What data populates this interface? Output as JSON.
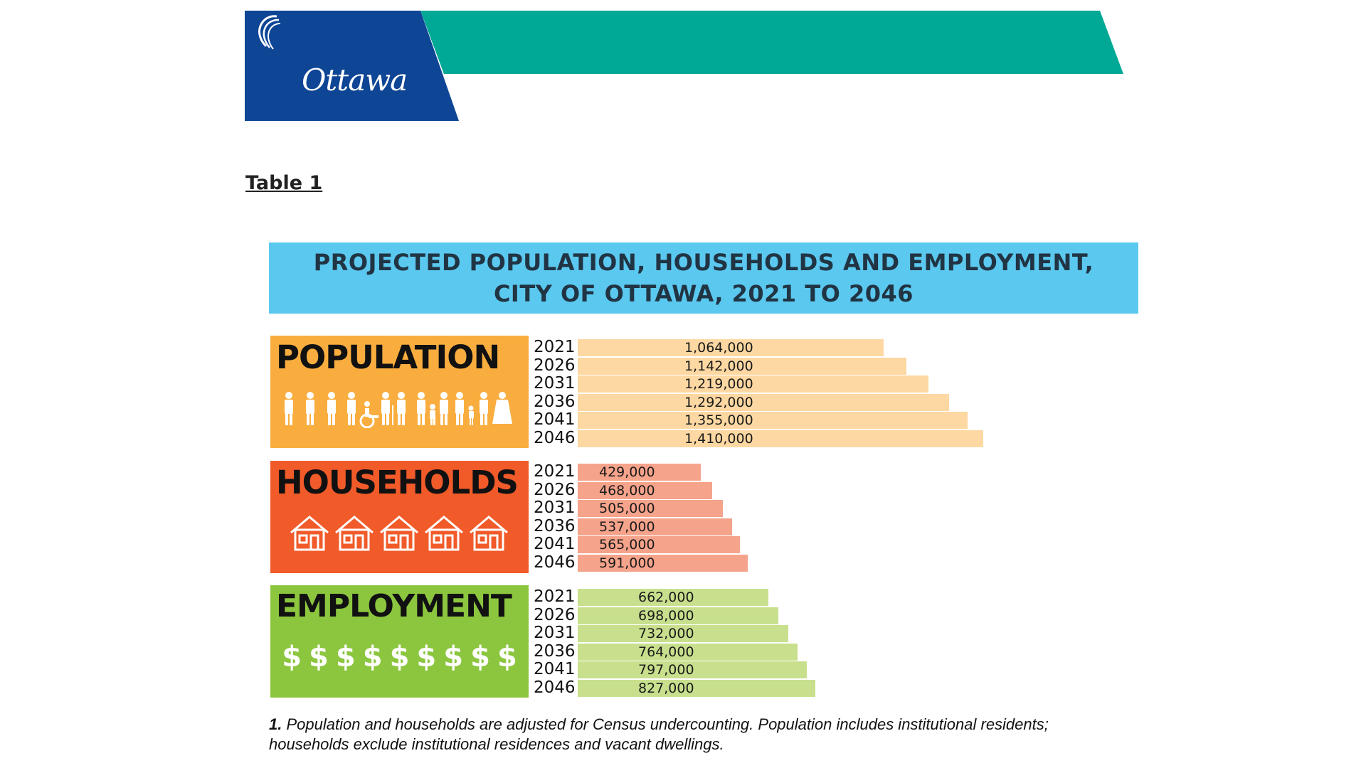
{
  "header": {
    "logo_text": "Ottawa",
    "colors": {
      "navy": "#0e4595",
      "teal": "#00a896"
    }
  },
  "table_label": "Table 1",
  "title": {
    "line1": "PROJECTED POPULATION, HOUSEHOLDS AND EMPLOYMENT,",
    "line2": "CITY OF OTTAWA, 2021 TO 2046"
  },
  "panels": {
    "population": {
      "title": "POPULATION",
      "color": "#f9ad3f",
      "bar_color": "#fdd8a2",
      "icon": "people-icon"
    },
    "households": {
      "title": "HOUSEHOLDS",
      "color": "#f15a29",
      "bar_color": "#f5a38b",
      "icon": "house-icon"
    },
    "employment": {
      "title": "EMPLOYMENT",
      "color": "#8cc63f",
      "bar_color": "#c8e08d",
      "icon": "dollar-icon",
      "dollar": "$"
    }
  },
  "chart_data": [
    {
      "type": "bar",
      "title": "POPULATION",
      "categories": [
        "2021",
        "2026",
        "2031",
        "2036",
        "2041",
        "2046"
      ],
      "values": [
        1064000,
        1142000,
        1219000,
        1292000,
        1355000,
        1410000
      ],
      "labels": [
        "1,064,000",
        "1,142,000",
        "1,219,000",
        "1,292,000",
        "1,355,000",
        "1,410,000"
      ]
    },
    {
      "type": "bar",
      "title": "HOUSEHOLDS",
      "categories": [
        "2021",
        "2026",
        "2031",
        "2036",
        "2041",
        "2046"
      ],
      "values": [
        429000,
        468000,
        505000,
        537000,
        565000,
        591000
      ],
      "labels": [
        "429,000",
        "468,000",
        "505,000",
        "537,000",
        "565,000",
        "591,000"
      ]
    },
    {
      "type": "bar",
      "title": "EMPLOYMENT",
      "categories": [
        "2021",
        "2026",
        "2031",
        "2036",
        "2041",
        "2046"
      ],
      "values": [
        662000,
        698000,
        732000,
        764000,
        797000,
        827000
      ],
      "labels": [
        "662,000",
        "698,000",
        "732,000",
        "764,000",
        "797,000",
        "827,000"
      ]
    }
  ],
  "footnote": {
    "number": "1.",
    "text": "Population and households are adjusted for Census undercounting. Population includes institutional residents; households exclude institutional residences and vacant dwellings."
  }
}
